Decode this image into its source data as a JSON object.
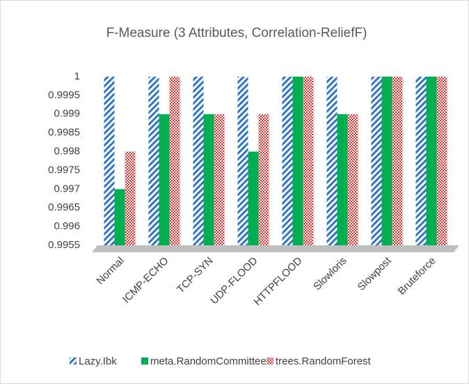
{
  "chart_data": {
    "type": "bar",
    "title": "F-Measure (3 Attributes, Correlation-ReliefF)",
    "categories": [
      "Normal",
      "ICMP-ECHO",
      "TCP-SYN",
      "UDP-FLOOD",
      "HTTPFLOOD",
      "Slowloris",
      "Slowpost",
      "Bruteforce"
    ],
    "series": [
      {
        "name": "Lazy.Ibk",
        "color": "#2e75c8",
        "values": [
          1,
          1,
          1,
          1,
          1,
          1,
          1,
          1
        ]
      },
      {
        "name": "meta.RandomCommittee",
        "color": "#00b050",
        "values": [
          0.997,
          0.999,
          0.999,
          0.998,
          1,
          0.999,
          1,
          1
        ]
      },
      {
        "name": "trees.RandomForest",
        "color": "#e03030",
        "values": [
          0.998,
          1,
          0.999,
          0.999,
          1,
          0.999,
          1,
          1
        ]
      }
    ],
    "ylim": [
      0.9955,
      1
    ],
    "yticks": [
      0.9955,
      0.996,
      0.9965,
      0.997,
      0.9975,
      0.998,
      0.9985,
      0.999,
      0.9995,
      1
    ]
  }
}
